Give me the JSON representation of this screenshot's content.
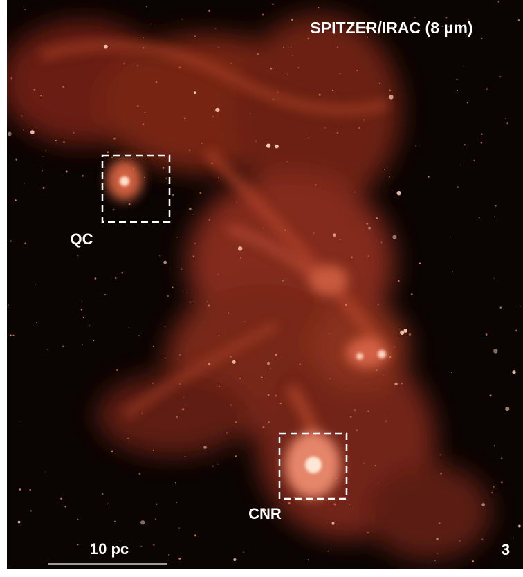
{
  "title": "SPITZER/IRAC (8 μm)",
  "labels": [
    "QC",
    "CNR"
  ],
  "scale_bar": "10 pc",
  "panel_number": "3"
}
